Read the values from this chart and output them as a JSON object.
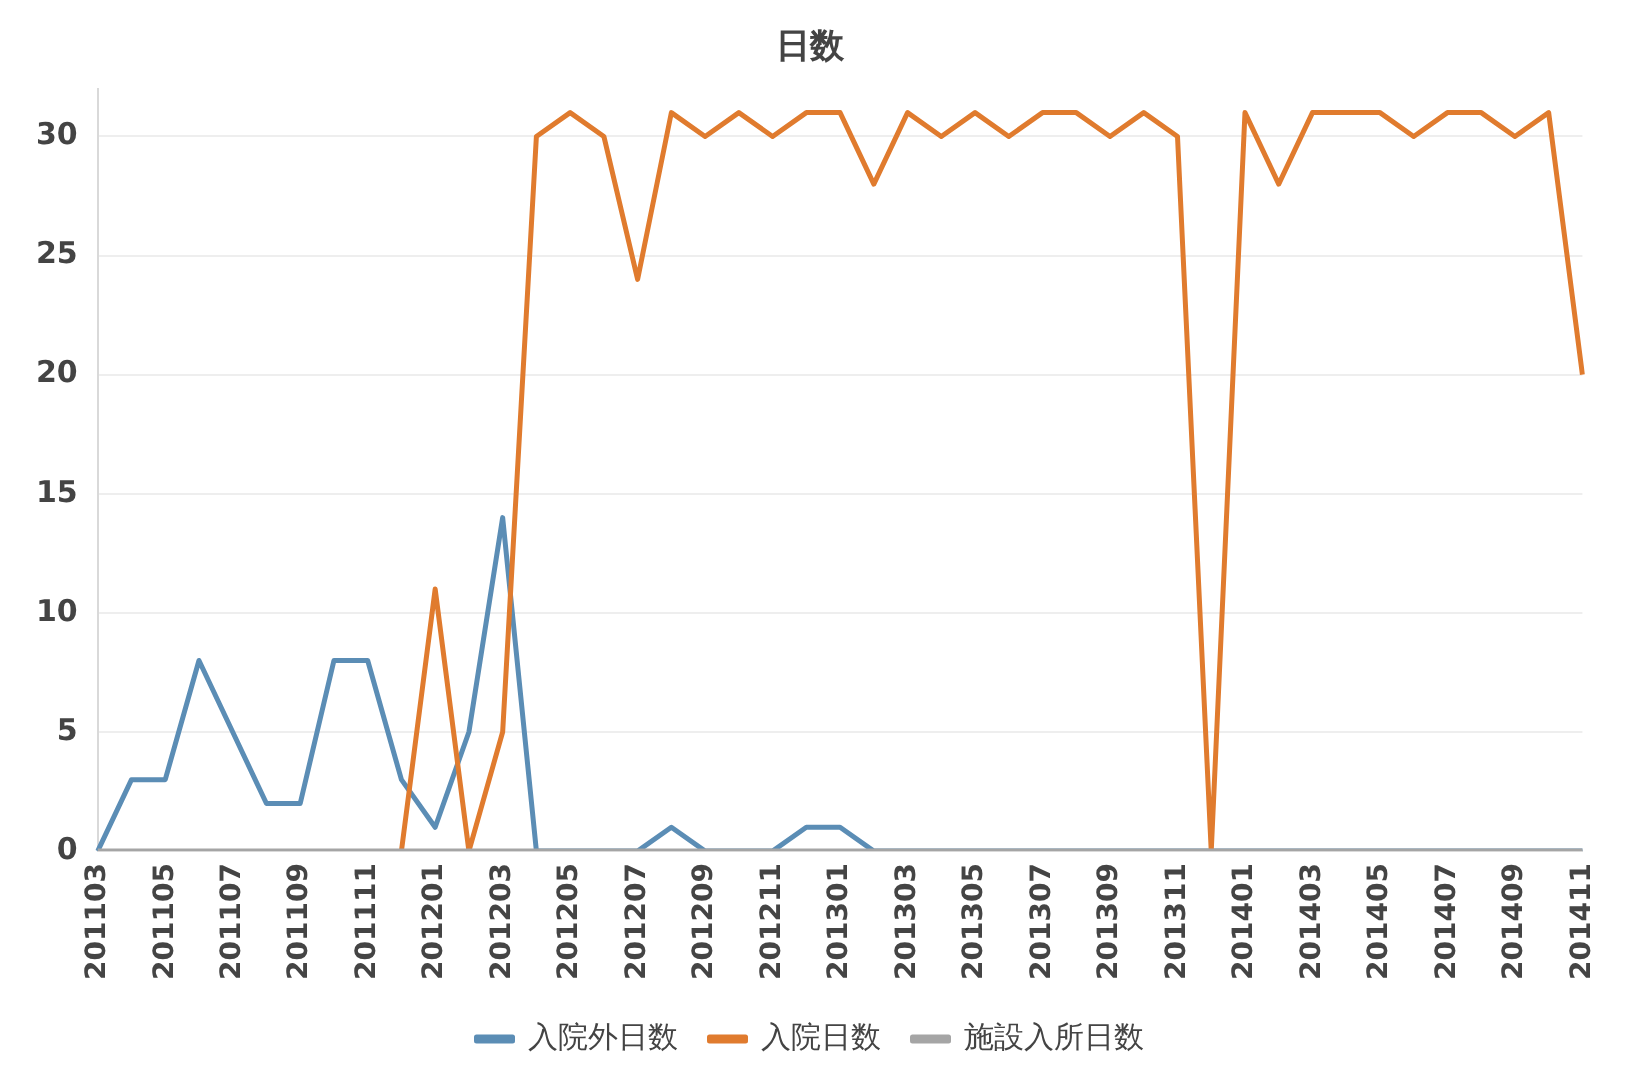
{
  "chart_data": {
    "type": "line",
    "title": "日数",
    "categories": [
      "201103",
      null,
      "201105",
      null,
      "201107",
      null,
      "201109",
      null,
      "201111",
      null,
      "201201",
      null,
      "201203",
      null,
      "201205",
      null,
      "201207",
      null,
      "201209",
      null,
      "201211",
      null,
      "201301",
      null,
      "201303",
      null,
      "201305",
      null,
      "201307",
      null,
      "201309",
      null,
      "201311",
      null,
      "201401",
      null,
      "201403",
      null,
      "201405",
      null,
      "201407",
      null,
      "201409",
      null,
      "201411"
    ],
    "series": [
      {
        "name": "入院外日数",
        "color": "#5b8db5",
        "values": [
          0,
          3,
          3,
          8,
          5,
          2,
          2,
          8,
          8,
          3,
          1,
          5,
          14,
          0,
          0,
          0,
          0,
          1,
          0,
          0,
          0,
          1,
          1,
          0,
          0,
          0,
          0,
          0,
          0,
          0,
          0,
          0,
          0,
          0,
          0,
          0,
          0,
          0,
          0,
          0,
          0,
          0,
          0,
          0,
          0
        ]
      },
      {
        "name": "入院日数",
        "color": "#e07b2e",
        "values": [
          null,
          null,
          null,
          null,
          null,
          null,
          null,
          null,
          null,
          0,
          11,
          0,
          5,
          30,
          31,
          30,
          24,
          31,
          30,
          31,
          30,
          31,
          31,
          28,
          31,
          30,
          31,
          30,
          31,
          31,
          30,
          31,
          30,
          0,
          31,
          28,
          31,
          31,
          31,
          30,
          31,
          31,
          30,
          31,
          20
        ]
      },
      {
        "name": "施設入所日数",
        "color": "#a5a5a5",
        "values": [
          0,
          0,
          0,
          0,
          0,
          0,
          0,
          0,
          0,
          0,
          0,
          0,
          0,
          0,
          0,
          0,
          0,
          0,
          0,
          0,
          0,
          0,
          0,
          0,
          0,
          0,
          0,
          0,
          0,
          0,
          0,
          0,
          0,
          0,
          0,
          0,
          0,
          0,
          0,
          0,
          0,
          0,
          0,
          0,
          0
        ]
      }
    ],
    "ylim": [
      0,
      32
    ],
    "yticks": [
      0,
      5,
      10,
      15,
      20,
      25,
      30
    ],
    "grid": "y",
    "legend": "bottom",
    "marker": "none",
    "line_style": "solid"
  }
}
